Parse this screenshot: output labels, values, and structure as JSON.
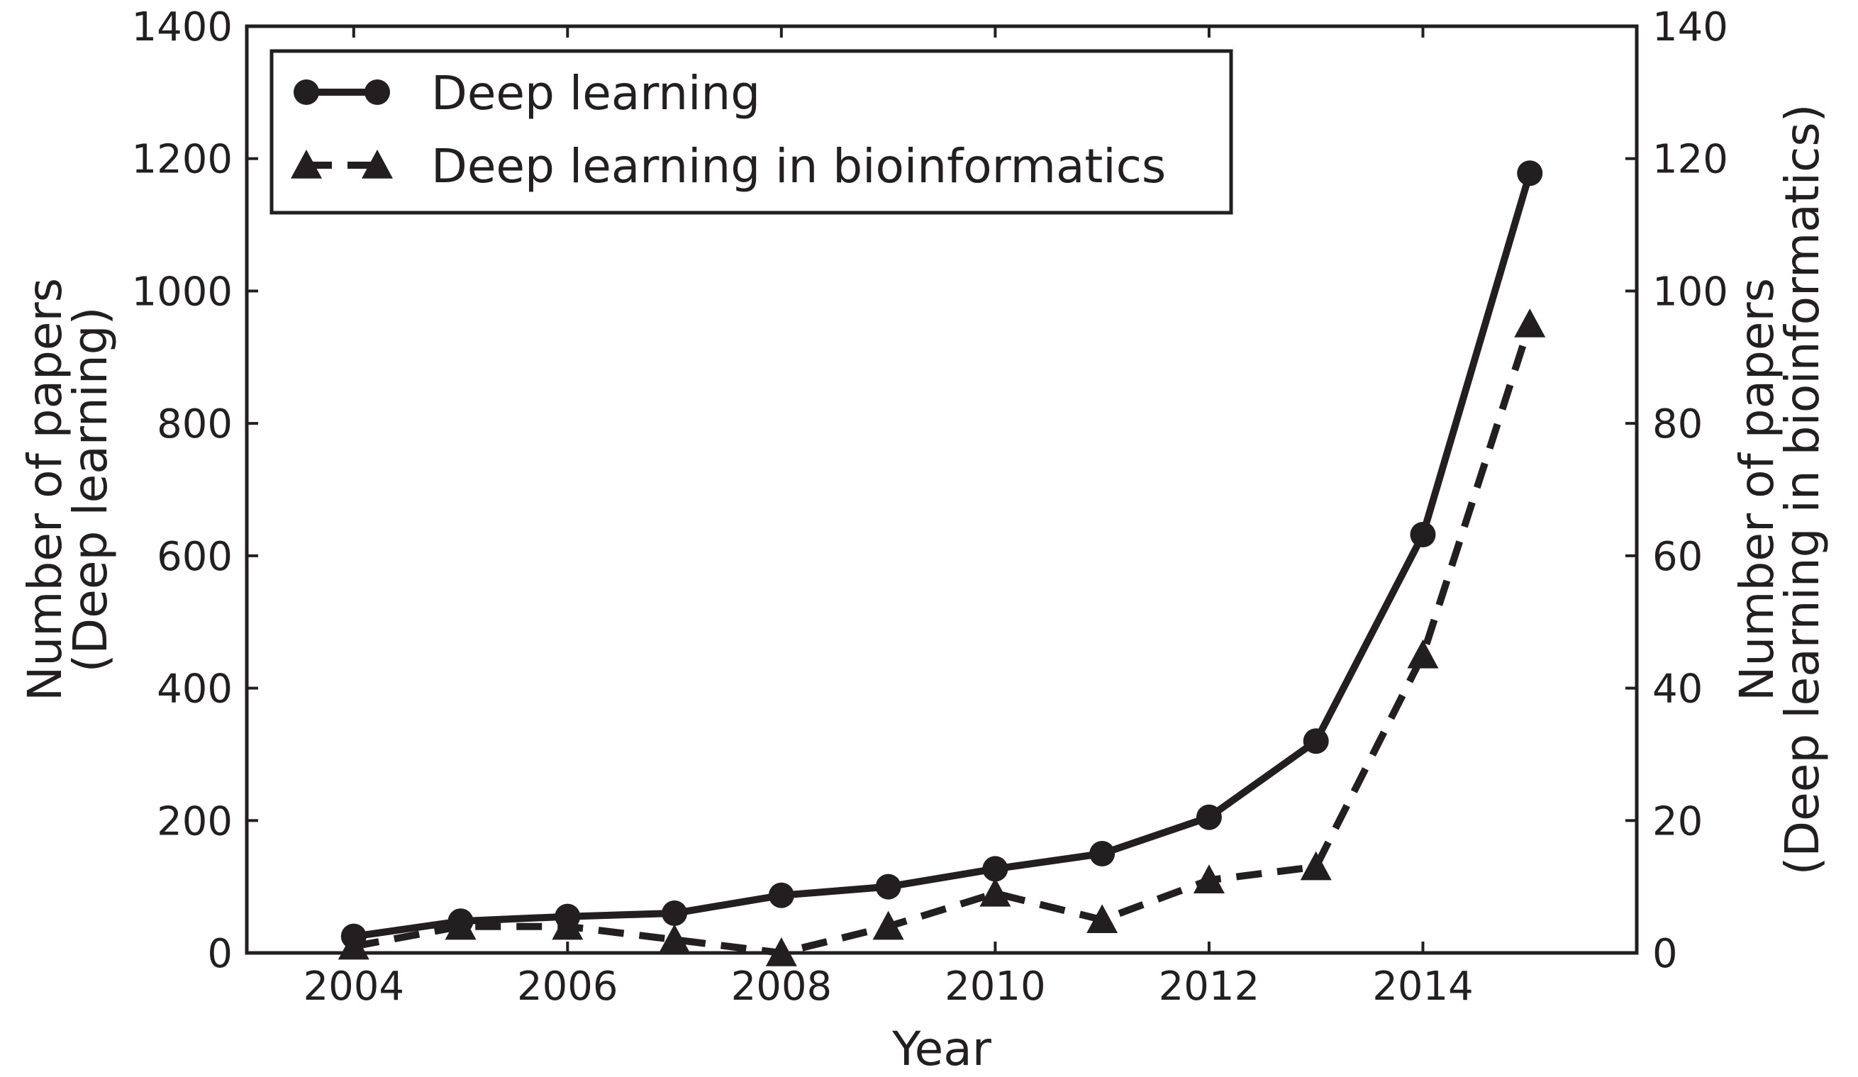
{
  "chart_data": {
    "type": "line",
    "title": "",
    "xlabel": "Year",
    "ylabel": "Number of papers (Deep learning)",
    "ylabel_lines": [
      "Number of papers",
      "(Deep learning)"
    ],
    "y2label": "Number of papers (Deep learning in bioinformatics)",
    "y2label_lines": [
      "Number of papers",
      "(Deep learning in bioinformatics)"
    ],
    "xlim": [
      2003,
      2016
    ],
    "ylim": [
      0,
      1400
    ],
    "y2lim": [
      0,
      140
    ],
    "xticks": [
      "2004",
      "2006",
      "2008",
      "2010",
      "2012",
      "2014"
    ],
    "yticks": [
      "0",
      "200",
      "400",
      "600",
      "800",
      "1000",
      "1200",
      "1400"
    ],
    "y2ticks": [
      "0",
      "20",
      "40",
      "60",
      "80",
      "100",
      "120",
      "140"
    ],
    "grid": false,
    "legend_position": "top-left",
    "x": [
      2004,
      2005,
      2006,
      2007,
      2008,
      2009,
      2010,
      2011,
      2012,
      2013,
      2014,
      2015
    ],
    "series": [
      {
        "name": "Deep learning",
        "axis": "left",
        "marker": "circle",
        "line_style": "solid",
        "color": "#231f20",
        "values": [
          25,
          48,
          55,
          60,
          87,
          100,
          127,
          150,
          205,
          320,
          632,
          1178
        ]
      },
      {
        "name": "Deep learning in bioinformatics",
        "axis": "right",
        "marker": "triangle",
        "line_style": "dashed",
        "color": "#231f20",
        "values": [
          1,
          4,
          4,
          2,
          0,
          4,
          9,
          5,
          11,
          13,
          45,
          95
        ]
      }
    ]
  }
}
